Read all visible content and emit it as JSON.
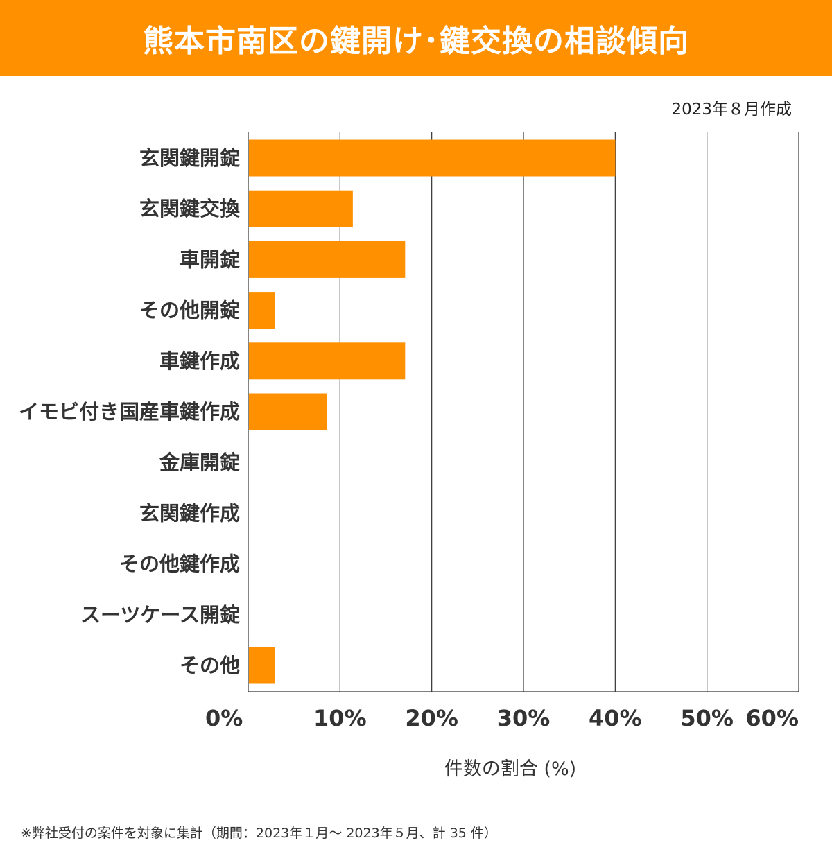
{
  "header": {
    "title": "熊本市南区の鍵開け･鍵交換の相談傾向",
    "date": "2023年８月作成"
  },
  "colors": {
    "accent": "#FF9000",
    "bar": "#FF9000",
    "grid": "#333333",
    "text": "#333333"
  },
  "chart_data": {
    "type": "bar",
    "orientation": "horizontal",
    "title": "熊本市南区の鍵開け･鍵交換の相談傾向",
    "xlabel": "件数の割合 (%)",
    "ylabel": "",
    "xlim": [
      0,
      60
    ],
    "ticks": [
      0,
      10,
      20,
      30,
      40,
      50,
      60
    ],
    "tick_labels": [
      "0%",
      "10%",
      "20%",
      "30%",
      "40%",
      "50%",
      "60%"
    ],
    "grid": true,
    "categories": [
      "玄関鍵開錠",
      "玄関鍵交換",
      "車開錠",
      "その他開錠",
      "車鍵作成",
      "イモビ付き国産車鍵作成",
      "金庫開錠",
      "玄関鍵作成",
      "その他鍵作成",
      "スーツケース開錠",
      "その他"
    ],
    "values": [
      40.0,
      11.4,
      17.1,
      2.9,
      17.1,
      8.6,
      0,
      0,
      0,
      0,
      2.9
    ]
  },
  "footnote": "※弊社受付の案件を対象に集計（期間：2023年１月～ 2023年５月、計 35 件）"
}
